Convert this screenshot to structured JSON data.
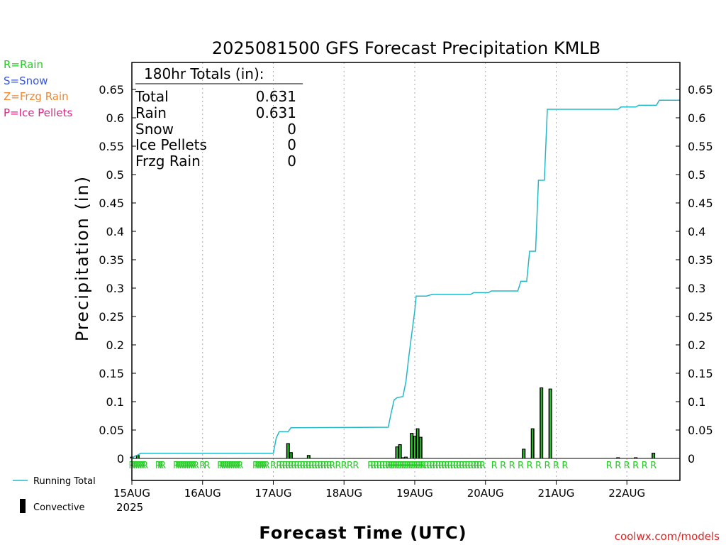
{
  "chart_data": {
    "type": "bar",
    "title": "2025081500 GFS Forecast Precipitation KMLB",
    "xlabel": "Forecast Time (UTC)",
    "ylabel": "Precipitation (in)",
    "ylim": [
      0,
      0.65
    ],
    "xlim_hours": [
      0,
      186
    ],
    "y_ticks": [
      0,
      0.05,
      0.1,
      0.15,
      0.2,
      0.25,
      0.3,
      0.35,
      0.4,
      0.45,
      0.5,
      0.55,
      0.6,
      0.65
    ],
    "y_tick_labels": [
      "0",
      "0.05",
      "0.1",
      "0.15",
      "0.2",
      "0.25",
      "0.3",
      "0.35",
      "0.4",
      "0.45",
      "0.5",
      "0.55",
      "0.6",
      "0.65"
    ],
    "x_ticks": [
      {
        "hour": 0,
        "label": "15AUG",
        "sublabel": "2025"
      },
      {
        "hour": 24,
        "label": "16AUG"
      },
      {
        "hour": 48,
        "label": "17AUG"
      },
      {
        "hour": 72,
        "label": "18AUG"
      },
      {
        "hour": 96,
        "label": "19AUG"
      },
      {
        "hour": 120,
        "label": "20AUG"
      },
      {
        "hour": 144,
        "label": "21AUG"
      },
      {
        "hour": 168,
        "label": "22AUG"
      }
    ],
    "grid": "vertical dotted at each day",
    "legend_position": "left",
    "legend_top": [
      "R=Rain",
      "S=Snow",
      "Z=Frzg Rain",
      "P=Ice Pellets"
    ],
    "legend_top_colors": [
      "#22cc22",
      "#3355dd",
      "#ee8833",
      "#dd2288"
    ],
    "legend_bottom": [
      "Running Total",
      "Convective"
    ],
    "totals": {
      "header": "180hr Totals (in):",
      "rows": [
        {
          "label": "Total",
          "value": "0.631"
        },
        {
          "label": "Rain",
          "value": "0.631"
        },
        {
          "label": "Snow",
          "value": "0"
        },
        {
          "label": "Ice Pellets",
          "value": "0"
        },
        {
          "label": "Frzg Rain",
          "value": "0"
        }
      ]
    },
    "series": [
      {
        "name": "Running Total",
        "color": "#22b8c8",
        "points": [
          [
            0,
            0.0
          ],
          [
            1,
            0.004
          ],
          [
            2,
            0.006
          ],
          [
            3,
            0.009
          ],
          [
            48,
            0.009
          ],
          [
            49,
            0.036
          ],
          [
            50,
            0.047
          ],
          [
            53,
            0.047
          ],
          [
            54,
            0.054
          ],
          [
            87,
            0.055
          ],
          [
            88,
            0.08
          ],
          [
            89,
            0.103
          ],
          [
            90,
            0.107
          ],
          [
            92,
            0.109
          ],
          [
            93,
            0.135
          ],
          [
            94,
            0.18
          ],
          [
            95,
            0.22
          ],
          [
            96,
            0.26
          ],
          [
            96.5,
            0.286
          ],
          [
            100,
            0.286
          ],
          [
            102,
            0.289
          ],
          [
            115,
            0.289
          ],
          [
            116,
            0.292
          ],
          [
            121,
            0.292
          ],
          [
            122,
            0.295
          ],
          [
            131,
            0.295
          ],
          [
            132,
            0.312
          ],
          [
            134,
            0.312
          ],
          [
            135,
            0.365
          ],
          [
            137,
            0.365
          ],
          [
            138,
            0.49
          ],
          [
            140,
            0.49
          ],
          [
            141,
            0.615
          ],
          [
            150,
            0.615
          ],
          [
            165,
            0.615
          ],
          [
            166,
            0.619
          ],
          [
            171,
            0.619
          ],
          [
            172,
            0.622
          ],
          [
            178,
            0.622
          ],
          [
            179,
            0.631
          ],
          [
            186,
            0.631
          ]
        ]
      },
      {
        "name": "Convective",
        "color": "#22cc22",
        "bars": [
          [
            0,
            0.003
          ],
          [
            2,
            0.006
          ],
          [
            53,
            0.027
          ],
          [
            54,
            0.011
          ],
          [
            60,
            0.006
          ],
          [
            90,
            0.021
          ],
          [
            91,
            0.025
          ],
          [
            92,
            0.002
          ],
          [
            93,
            0.003
          ],
          [
            95,
            0.045
          ],
          [
            96,
            0.04
          ],
          [
            97,
            0.053
          ],
          [
            98,
            0.038
          ],
          [
            133,
            0.017
          ],
          [
            136,
            0.053
          ],
          [
            139,
            0.125
          ],
          [
            142,
            0.123
          ],
          [
            165,
            0.002
          ],
          [
            171,
            0.002
          ],
          [
            177,
            0.01
          ]
        ]
      }
    ],
    "ptype_markers": {
      "symbol": "R",
      "hours": [
        0,
        0.75,
        1.5,
        2.25,
        3,
        3.75,
        4.5,
        9,
        9.75,
        10.5,
        15,
        15.75,
        16.5,
        17.25,
        18,
        18.75,
        19.5,
        20.25,
        21,
        21.75,
        24,
        25.5,
        30,
        30.75,
        31.5,
        32.25,
        33,
        33.75,
        34.5,
        35.25,
        36,
        36.75,
        42,
        42.75,
        43.5,
        44.25,
        45,
        45.75,
        48,
        50,
        51,
        52,
        53,
        54,
        55,
        56,
        57,
        58,
        59,
        60,
        61,
        62,
        63,
        64,
        65,
        66,
        67,
        68,
        70,
        72,
        74,
        76,
        81,
        82,
        83,
        84,
        85,
        86,
        87,
        87.6,
        88.2,
        88.8,
        89.4,
        90,
        90.6,
        91.2,
        91.8,
        92.4,
        93,
        93.6,
        94.2,
        94.8,
        95.4,
        96,
        96.6,
        97.2,
        97.8,
        98.4,
        99,
        100,
        101,
        102,
        103,
        104,
        105,
        106,
        107,
        108,
        109,
        110,
        111,
        112,
        113,
        114,
        115,
        116,
        117,
        118,
        119,
        123,
        126,
        129,
        132,
        135,
        138,
        141,
        144,
        147,
        162,
        165,
        168,
        171,
        174,
        177
      ]
    }
  },
  "credit": "coolwx.com/models"
}
